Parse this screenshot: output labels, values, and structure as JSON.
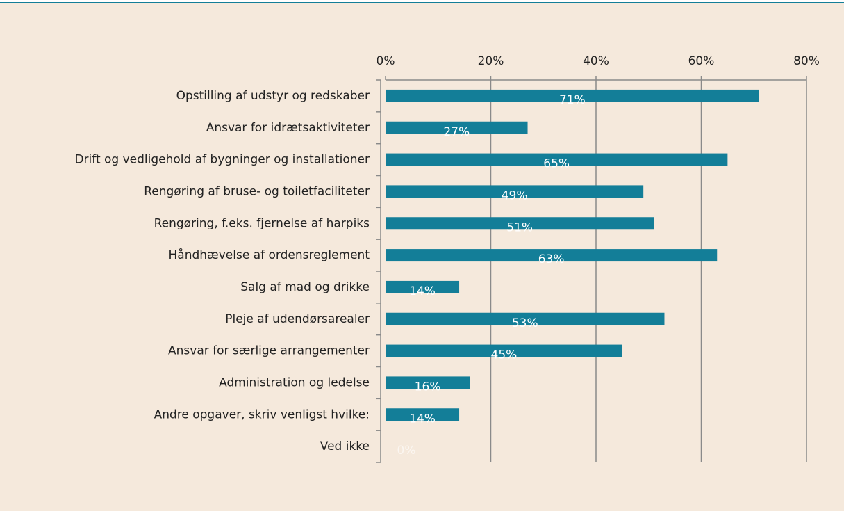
{
  "chart_data": {
    "type": "barh",
    "categories": [
      "Opstilling af udstyr og redskaber",
      "Ansvar for idrætsaktiviteter",
      "Drift og vedligehold af bygninger og installationer",
      "Rengøring af bruse- og toiletfaciliteter",
      "Rengøring, f.eks. fjernelse af harpiks",
      "Håndhævelse af ordensreglement",
      "Salg af mad og drikke",
      "Pleje af udendørsarealer",
      "Ansvar for særlige arrangementer",
      "Administration og ledelse",
      "Andre opgaver, skriv venligst hvilke:",
      "Ved ikke"
    ],
    "values": [
      71,
      27,
      65,
      49,
      51,
      63,
      14,
      53,
      45,
      16,
      14,
      0
    ],
    "value_labels": [
      "71%",
      "27%",
      "65%",
      "49%",
      "51%",
      "63%",
      "14%",
      "53%",
      "45%",
      "16%",
      "14%",
      "0%"
    ],
    "color": "#137e98",
    "xlim": [
      0,
      80
    ],
    "xticks": [
      {
        "value": 0,
        "label": "0%"
      },
      {
        "value": 20,
        "label": "20%"
      },
      {
        "value": 40,
        "label": "40%"
      },
      {
        "value": 60,
        "label": "60%"
      },
      {
        "value": 80,
        "label": "80%"
      }
    ],
    "grid": true
  }
}
